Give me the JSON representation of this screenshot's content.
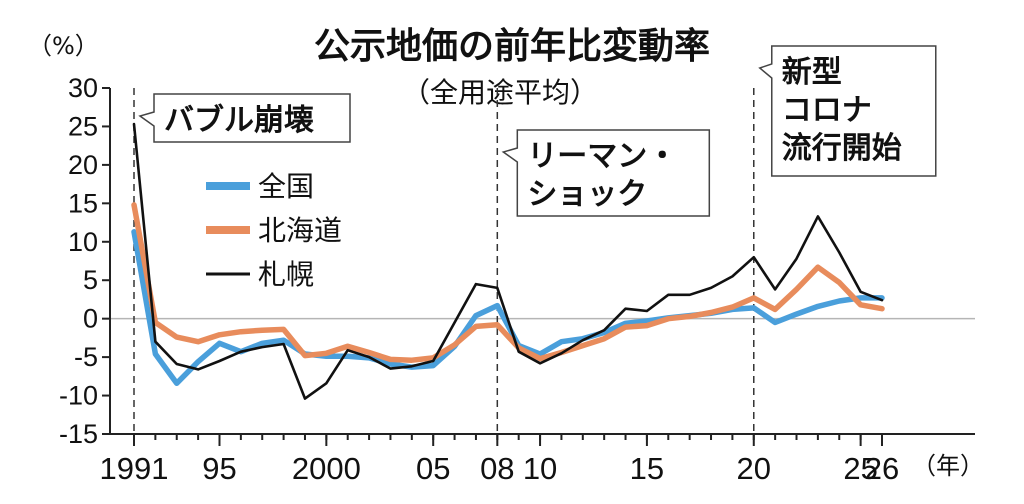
{
  "chart_data": {
    "type": "line",
    "title": "公示地価の前年比変動率",
    "subtitle": "（全用途平均）",
    "ylabel": "（%）",
    "xlabel_suffix": "（年）",
    "ylim": [
      -15,
      30
    ],
    "xlim": [
      1991,
      2026
    ],
    "yticks": [
      30,
      25,
      20,
      15,
      10,
      5,
      0,
      -5,
      -10,
      -15
    ],
    "ytick_labels": [
      "30",
      "25",
      "20",
      "15",
      "10",
      "5",
      "0",
      "-5",
      "-10",
      "-15"
    ],
    "xticks": [
      {
        "year": 1991,
        "label": "1991"
      },
      {
        "year": 1995,
        "label": "95"
      },
      {
        "year": 2000,
        "label": "2000"
      },
      {
        "year": 2005,
        "label": "05"
      },
      {
        "year": 2008,
        "label": "08"
      },
      {
        "year": 2010,
        "label": "10"
      },
      {
        "year": 2015,
        "label": "15"
      },
      {
        "year": 2020,
        "label": "20"
      },
      {
        "year": 2025,
        "label": "25"
      },
      {
        "year": 2026,
        "label": "26"
      }
    ],
    "x": [
      1991,
      1992,
      1993,
      1994,
      1995,
      1996,
      1997,
      1998,
      1999,
      2000,
      2001,
      2002,
      2003,
      2004,
      2005,
      2006,
      2007,
      2008,
      2009,
      2010,
      2011,
      2012,
      2013,
      2014,
      2015,
      2016,
      2017,
      2018,
      2019,
      2020,
      2021,
      2022,
      2023,
      2024,
      2025,
      2026
    ],
    "series": [
      {
        "name": "全国",
        "color": "#4a9fdb",
        "values": [
          11.3,
          -4.6,
          -8.4,
          -5.6,
          -3.2,
          -4.3,
          -3.2,
          -2.8,
          -4.6,
          -4.9,
          -4.9,
          -5.1,
          -5.9,
          -6.3,
          -6.1,
          -3.6,
          0.4,
          1.7,
          -3.5,
          -4.6,
          -3.0,
          -2.6,
          -1.8,
          -0.6,
          -0.3,
          0.1,
          0.4,
          0.7,
          1.2,
          1.4,
          -0.5,
          0.6,
          1.6,
          2.3,
          2.7,
          2.7
        ]
      },
      {
        "name": "北海道",
        "color": "#e88c5c",
        "values": [
          14.8,
          -0.5,
          -2.4,
          -3.0,
          -2.1,
          -1.7,
          -1.5,
          -1.4,
          -4.8,
          -4.5,
          -3.6,
          -4.4,
          -5.3,
          -5.4,
          -5.1,
          -3.4,
          -1.0,
          -0.8,
          -3.8,
          -5.2,
          -4.4,
          -3.5,
          -2.6,
          -1.1,
          -0.9,
          0.0,
          0.3,
          0.8,
          1.5,
          2.7,
          1.2,
          3.8,
          6.7,
          4.7,
          1.8,
          1.3
        ]
      },
      {
        "name": "札幌",
        "color": "#111111",
        "values": [
          25.3,
          -3.0,
          -5.9,
          -6.6,
          -5.5,
          -4.3,
          -3.7,
          -3.3,
          -10.4,
          -8.4,
          -4.1,
          -5.0,
          -6.5,
          -6.2,
          -5.5,
          -0.5,
          4.5,
          4.0,
          -4.3,
          -5.8,
          -4.5,
          -2.8,
          -1.5,
          1.3,
          1.0,
          3.1,
          3.1,
          4.0,
          5.5,
          8.0,
          3.8,
          7.8,
          13.3,
          8.6,
          3.5,
          2.4
        ]
      }
    ],
    "legend": [
      "全国",
      "北海道",
      "札幌"
    ],
    "annotations": [
      {
        "year": 1991,
        "lines": [
          "バブル崩壊"
        ]
      },
      {
        "year": 2008,
        "lines": [
          "リーマン・",
          "ショック"
        ]
      },
      {
        "year": 2020,
        "lines": [
          "新型",
          "コロナ",
          "流行開始"
        ]
      }
    ]
  }
}
